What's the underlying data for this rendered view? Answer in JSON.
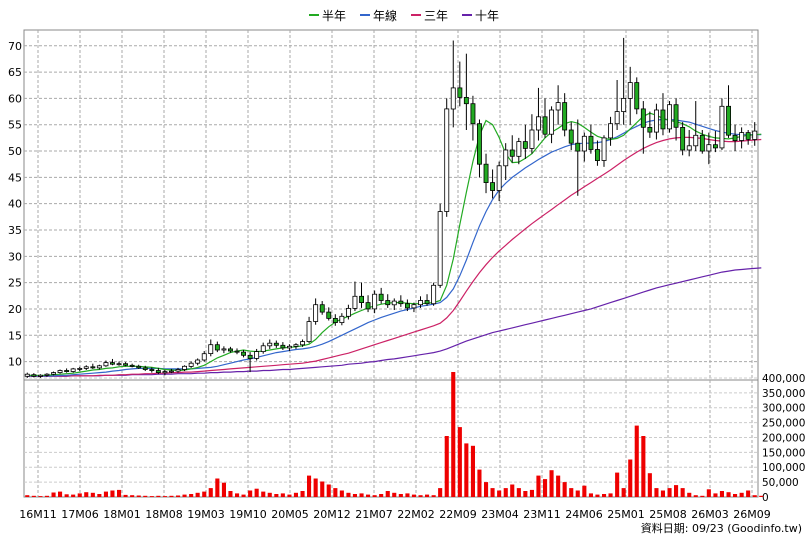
{
  "chart_data": {
    "type": "candlestick",
    "legend": [
      {
        "name": "半年",
        "color": "#22aa22"
      },
      {
        "name": "年線",
        "color": "#3366cc"
      },
      {
        "name": "三年",
        "color": "#cc2266"
      },
      {
        "name": "十年",
        "color": "#6622aa"
      }
    ],
    "x_tick_labels": [
      "16M11",
      "17M06",
      "18M01",
      "18M08",
      "19M03",
      "19M10",
      "20M05",
      "20M12",
      "21M07",
      "22M02",
      "22M09",
      "23M04",
      "23M11",
      "24M06",
      "25M01",
      "25M08",
      "26M03",
      "26M09"
    ],
    "price_axis": {
      "ticks": [
        10,
        15,
        20,
        25,
        30,
        35,
        40,
        45,
        50,
        55,
        60,
        65,
        70
      ],
      "range": [
        6.5,
        73
      ]
    },
    "volume_axis": {
      "ticks": [
        "0",
        "50,000",
        "100,000",
        "150,000",
        "200,000",
        "250,000",
        "300,000",
        "350,000",
        "400,000"
      ],
      "range": [
        0,
        420000
      ]
    },
    "candles": [
      {
        "o": 7.2,
        "h": 7.9,
        "l": 6.9,
        "c": 7.6
      },
      {
        "o": 7.5,
        "h": 7.8,
        "l": 7.0,
        "c": 7.2
      },
      {
        "o": 7.2,
        "h": 7.6,
        "l": 6.9,
        "c": 7.4
      },
      {
        "o": 7.4,
        "h": 7.8,
        "l": 7.1,
        "c": 7.6
      },
      {
        "o": 7.6,
        "h": 8.1,
        "l": 7.4,
        "c": 7.9
      },
      {
        "o": 7.9,
        "h": 8.5,
        "l": 7.7,
        "c": 8.3
      },
      {
        "o": 8.3,
        "h": 8.7,
        "l": 7.9,
        "c": 8.1
      },
      {
        "o": 8.1,
        "h": 8.8,
        "l": 7.9,
        "c": 8.6
      },
      {
        "o": 8.6,
        "h": 9.0,
        "l": 8.2,
        "c": 8.7
      },
      {
        "o": 8.7,
        "h": 9.3,
        "l": 8.4,
        "c": 9.0
      },
      {
        "o": 9.0,
        "h": 9.6,
        "l": 8.6,
        "c": 8.8
      },
      {
        "o": 8.8,
        "h": 9.4,
        "l": 8.5,
        "c": 9.2
      },
      {
        "o": 9.2,
        "h": 10.2,
        "l": 9.0,
        "c": 9.8
      },
      {
        "o": 9.8,
        "h": 10.5,
        "l": 9.3,
        "c": 9.5
      },
      {
        "o": 9.5,
        "h": 10.0,
        "l": 9.2,
        "c": 9.6
      },
      {
        "o": 9.6,
        "h": 9.9,
        "l": 9.1,
        "c": 9.3
      },
      {
        "o": 9.3,
        "h": 9.6,
        "l": 8.9,
        "c": 9.1
      },
      {
        "o": 9.1,
        "h": 9.4,
        "l": 8.6,
        "c": 8.8
      },
      {
        "o": 8.8,
        "h": 9.2,
        "l": 8.2,
        "c": 8.5
      },
      {
        "o": 8.5,
        "h": 8.9,
        "l": 7.9,
        "c": 8.3
      },
      {
        "o": 8.3,
        "h": 8.8,
        "l": 7.6,
        "c": 7.9
      },
      {
        "o": 7.9,
        "h": 8.4,
        "l": 7.4,
        "c": 8.1
      },
      {
        "o": 8.1,
        "h": 8.6,
        "l": 7.8,
        "c": 8.2
      },
      {
        "o": 8.2,
        "h": 8.8,
        "l": 7.9,
        "c": 8.5
      },
      {
        "o": 8.5,
        "h": 9.3,
        "l": 8.2,
        "c": 9.1
      },
      {
        "o": 9.1,
        "h": 10.0,
        "l": 8.8,
        "c": 9.7
      },
      {
        "o": 9.7,
        "h": 10.6,
        "l": 9.3,
        "c": 10.3
      },
      {
        "o": 10.3,
        "h": 12.0,
        "l": 10.0,
        "c": 11.5
      },
      {
        "o": 11.5,
        "h": 14.2,
        "l": 11.0,
        "c": 13.2
      },
      {
        "o": 13.2,
        "h": 13.8,
        "l": 11.8,
        "c": 12.2
      },
      {
        "o": 12.2,
        "h": 12.9,
        "l": 11.6,
        "c": 12.4
      },
      {
        "o": 12.4,
        "h": 12.8,
        "l": 11.7,
        "c": 12.0
      },
      {
        "o": 12.0,
        "h": 12.5,
        "l": 11.4,
        "c": 11.8
      },
      {
        "o": 11.8,
        "h": 12.2,
        "l": 10.8,
        "c": 11.2
      },
      {
        "o": 11.2,
        "h": 11.8,
        "l": 8.0,
        "c": 10.6
      },
      {
        "o": 10.6,
        "h": 12.4,
        "l": 10.2,
        "c": 11.9
      },
      {
        "o": 11.9,
        "h": 13.6,
        "l": 11.5,
        "c": 13.0
      },
      {
        "o": 13.0,
        "h": 14.2,
        "l": 12.4,
        "c": 13.5
      },
      {
        "o": 13.5,
        "h": 14.0,
        "l": 12.6,
        "c": 13.1
      },
      {
        "o": 13.1,
        "h": 13.7,
        "l": 12.2,
        "c": 12.6
      },
      {
        "o": 12.6,
        "h": 13.3,
        "l": 12.0,
        "c": 12.9
      },
      {
        "o": 12.9,
        "h": 13.5,
        "l": 12.4,
        "c": 13.2
      },
      {
        "o": 13.2,
        "h": 14.2,
        "l": 12.8,
        "c": 13.8
      },
      {
        "o": 13.8,
        "h": 18.5,
        "l": 13.5,
        "c": 17.6
      },
      {
        "o": 17.6,
        "h": 22.0,
        "l": 17.0,
        "c": 20.8
      },
      {
        "o": 20.8,
        "h": 21.5,
        "l": 18.9,
        "c": 19.4
      },
      {
        "o": 19.4,
        "h": 20.3,
        "l": 17.8,
        "c": 18.2
      },
      {
        "o": 18.2,
        "h": 19.0,
        "l": 16.8,
        "c": 17.4
      },
      {
        "o": 17.4,
        "h": 19.2,
        "l": 16.9,
        "c": 18.6
      },
      {
        "o": 18.6,
        "h": 20.8,
        "l": 18.0,
        "c": 20.1
      },
      {
        "o": 20.1,
        "h": 25.2,
        "l": 19.6,
        "c": 22.4
      },
      {
        "o": 22.4,
        "h": 25.0,
        "l": 20.2,
        "c": 21.2
      },
      {
        "o": 21.2,
        "h": 22.6,
        "l": 19.4,
        "c": 20.0
      },
      {
        "o": 20.0,
        "h": 23.5,
        "l": 19.2,
        "c": 22.8
      },
      {
        "o": 22.8,
        "h": 24.0,
        "l": 21.0,
        "c": 21.6
      },
      {
        "o": 21.6,
        "h": 22.8,
        "l": 20.2,
        "c": 20.8
      },
      {
        "o": 20.8,
        "h": 22.0,
        "l": 19.8,
        "c": 21.5
      },
      {
        "o": 21.5,
        "h": 22.6,
        "l": 20.4,
        "c": 21.0
      },
      {
        "o": 21.0,
        "h": 21.8,
        "l": 19.6,
        "c": 20.2
      },
      {
        "o": 20.2,
        "h": 21.2,
        "l": 19.4,
        "c": 20.8
      },
      {
        "o": 20.8,
        "h": 22.4,
        "l": 20.2,
        "c": 21.6
      },
      {
        "o": 21.6,
        "h": 22.8,
        "l": 20.6,
        "c": 21.0
      },
      {
        "o": 21.0,
        "h": 25.0,
        "l": 20.6,
        "c": 24.5
      },
      {
        "o": 24.5,
        "h": 40.0,
        "l": 24.0,
        "c": 38.5
      },
      {
        "o": 38.5,
        "h": 60.0,
        "l": 37.5,
        "c": 58.0
      },
      {
        "o": 58.0,
        "h": 71.0,
        "l": 54.5,
        "c": 62.0
      },
      {
        "o": 62.0,
        "h": 67.0,
        "l": 58.5,
        "c": 60.2
      },
      {
        "o": 60.2,
        "h": 68.5,
        "l": 54.0,
        "c": 59.0
      },
      {
        "o": 59.0,
        "h": 60.5,
        "l": 52.0,
        "c": 55.2
      },
      {
        "o": 55.2,
        "h": 56.0,
        "l": 45.0,
        "c": 47.5
      },
      {
        "o": 47.5,
        "h": 49.5,
        "l": 42.0,
        "c": 44.0
      },
      {
        "o": 44.0,
        "h": 46.5,
        "l": 41.0,
        "c": 42.5
      },
      {
        "o": 42.5,
        "h": 48.0,
        "l": 40.5,
        "c": 47.2
      },
      {
        "o": 47.2,
        "h": 51.5,
        "l": 44.5,
        "c": 50.2
      },
      {
        "o": 50.2,
        "h": 53.0,
        "l": 47.8,
        "c": 49.0
      },
      {
        "o": 49.0,
        "h": 52.5,
        "l": 47.5,
        "c": 51.8
      },
      {
        "o": 51.8,
        "h": 55.0,
        "l": 48.5,
        "c": 50.5
      },
      {
        "o": 50.5,
        "h": 57.0,
        "l": 49.5,
        "c": 54.0
      },
      {
        "o": 54.0,
        "h": 62.0,
        "l": 52.0,
        "c": 56.5
      },
      {
        "o": 56.5,
        "h": 60.0,
        "l": 52.5,
        "c": 53.2
      },
      {
        "o": 53.2,
        "h": 58.5,
        "l": 51.5,
        "c": 57.8
      },
      {
        "o": 57.8,
        "h": 62.5,
        "l": 55.0,
        "c": 59.2
      },
      {
        "o": 59.2,
        "h": 61.0,
        "l": 52.8,
        "c": 54.0
      },
      {
        "o": 54.0,
        "h": 55.5,
        "l": 50.2,
        "c": 51.5
      },
      {
        "o": 51.5,
        "h": 56.0,
        "l": 41.5,
        "c": 50.0
      },
      {
        "o": 50.0,
        "h": 53.5,
        "l": 48.0,
        "c": 52.8
      },
      {
        "o": 52.8,
        "h": 55.0,
        "l": 49.5,
        "c": 50.3
      },
      {
        "o": 50.3,
        "h": 52.0,
        "l": 47.2,
        "c": 48.2
      },
      {
        "o": 48.2,
        "h": 53.0,
        "l": 47.0,
        "c": 52.5
      },
      {
        "o": 52.5,
        "h": 56.5,
        "l": 51.0,
        "c": 55.2
      },
      {
        "o": 55.2,
        "h": 63.5,
        "l": 54.0,
        "c": 57.5
      },
      {
        "o": 57.5,
        "h": 71.5,
        "l": 55.0,
        "c": 60.0
      },
      {
        "o": 60.0,
        "h": 66.0,
        "l": 55.0,
        "c": 63.0
      },
      {
        "o": 63.0,
        "h": 64.0,
        "l": 57.0,
        "c": 58.0
      },
      {
        "o": 58.0,
        "h": 59.5,
        "l": 49.5,
        "c": 54.5
      },
      {
        "o": 54.5,
        "h": 57.5,
        "l": 52.5,
        "c": 53.6
      },
      {
        "o": 53.6,
        "h": 59.0,
        "l": 52.2,
        "c": 57.8
      },
      {
        "o": 57.8,
        "h": 61.0,
        "l": 53.0,
        "c": 54.2
      },
      {
        "o": 54.2,
        "h": 59.5,
        "l": 53.5,
        "c": 58.8
      },
      {
        "o": 58.8,
        "h": 60.0,
        "l": 52.0,
        "c": 54.5
      },
      {
        "o": 54.5,
        "h": 55.5,
        "l": 49.2,
        "c": 50.2
      },
      {
        "o": 50.2,
        "h": 54.0,
        "l": 49.0,
        "c": 51.0
      },
      {
        "o": 51.0,
        "h": 59.5,
        "l": 50.0,
        "c": 53.0
      },
      {
        "o": 53.0,
        "h": 54.0,
        "l": 49.5,
        "c": 50.0
      },
      {
        "o": 50.0,
        "h": 53.5,
        "l": 47.5,
        "c": 51.2
      },
      {
        "o": 51.2,
        "h": 53.8,
        "l": 49.8,
        "c": 50.6
      },
      {
        "o": 50.6,
        "h": 60.0,
        "l": 50.2,
        "c": 58.5
      },
      {
        "o": 58.5,
        "h": 62.5,
        "l": 52.5,
        "c": 53.0
      },
      {
        "o": 53.0,
        "h": 55.0,
        "l": 50.0,
        "c": 52.0
      },
      {
        "o": 52.0,
        "h": 54.5,
        "l": 50.5,
        "c": 53.5
      },
      {
        "o": 53.5,
        "h": 54.0,
        "l": 51.2,
        "c": 52.2
      },
      {
        "o": 52.2,
        "h": 55.5,
        "l": 51.0,
        "c": 53.8
      }
    ],
    "ma_half_year": [
      7.4,
      7.4,
      7.4,
      7.4,
      7.5,
      7.6,
      7.7,
      7.8,
      8.0,
      8.2,
      8.4,
      8.5,
      8.7,
      8.8,
      9.0,
      9.1,
      9.1,
      9.1,
      9.0,
      8.9,
      8.7,
      8.5,
      8.4,
      8.3,
      8.4,
      8.6,
      8.9,
      9.3,
      10.0,
      10.7,
      11.2,
      11.7,
      12.0,
      12.2,
      12.0,
      11.9,
      12.0,
      12.2,
      12.4,
      12.6,
      12.7,
      12.8,
      13.0,
      13.3,
      14.2,
      15.5,
      16.6,
      17.5,
      18.1,
      18.6,
      19.2,
      19.7,
      20.2,
      20.6,
      20.9,
      21.1,
      21.2,
      21.2,
      21.1,
      21.0,
      21.0,
      21.1,
      21.2,
      21.6,
      24.5,
      29.5,
      36.0,
      42.2,
      48.0,
      53.0,
      55.8,
      55.0,
      52.6,
      49.5,
      47.8,
      47.9,
      48.6,
      49.5,
      51.0,
      52.5,
      53.6,
      54.3,
      55.2,
      55.6,
      55.3,
      54.5,
      53.6,
      52.8,
      52.4,
      52.2,
      52.4,
      53.0,
      54.2,
      55.4,
      56.6,
      57.2,
      56.8,
      56.2,
      55.8,
      55.6,
      55.2,
      54.6,
      53.8,
      53.2,
      52.8,
      52.5,
      52.4,
      52.3,
      52.5,
      52.8,
      53.0,
      53.1,
      53.2
    ],
    "ma_year": [
      7.3,
      7.3,
      7.3,
      7.3,
      7.3,
      7.4,
      7.4,
      7.5,
      7.6,
      7.7,
      7.8,
      7.9,
      8.0,
      8.2,
      8.3,
      8.5,
      8.6,
      8.7,
      8.7,
      8.7,
      8.7,
      8.6,
      8.6,
      8.6,
      8.6,
      8.6,
      8.7,
      8.8,
      8.9,
      9.1,
      9.4,
      9.7,
      10.0,
      10.3,
      10.5,
      10.8,
      11.1,
      11.4,
      11.7,
      11.9,
      12.1,
      12.3,
      12.4,
      12.6,
      12.9,
      13.3,
      13.8,
      14.4,
      15.0,
      15.6,
      16.2,
      16.8,
      17.4,
      17.9,
      18.4,
      18.8,
      19.2,
      19.6,
      19.9,
      20.2,
      20.5,
      20.7,
      20.9,
      21.2,
      22.2,
      23.8,
      26.3,
      29.3,
      32.6,
      35.8,
      38.5,
      40.8,
      42.6,
      43.9,
      45.0,
      45.9,
      46.8,
      47.6,
      48.4,
      49.1,
      49.8,
      50.3,
      50.8,
      51.2,
      51.4,
      51.5,
      51.5,
      51.6,
      51.8,
      52.2,
      52.7,
      53.4,
      54.1,
      54.7,
      55.3,
      55.7,
      55.9,
      56.0,
      56.0,
      55.9,
      55.7,
      55.5,
      55.1,
      54.7,
      54.3,
      53.9,
      53.6,
      53.4,
      53.2,
      53.1,
      53.1,
      53.1,
      53.1
    ],
    "ma_three_year": [
      7.3,
      7.3,
      7.3,
      7.3,
      7.3,
      7.3,
      7.3,
      7.3,
      7.3,
      7.3,
      7.3,
      7.4,
      7.4,
      7.4,
      7.5,
      7.5,
      7.6,
      7.6,
      7.7,
      7.7,
      7.8,
      7.8,
      7.9,
      7.9,
      8.0,
      8.0,
      8.1,
      8.2,
      8.3,
      8.4,
      8.5,
      8.6,
      8.7,
      8.8,
      8.9,
      9.0,
      9.1,
      9.2,
      9.3,
      9.4,
      9.5,
      9.6,
      9.7,
      9.9,
      10.1,
      10.4,
      10.7,
      11.0,
      11.3,
      11.6,
      12.0,
      12.4,
      12.8,
      13.2,
      13.6,
      14.0,
      14.4,
      14.8,
      15.2,
      15.6,
      16.0,
      16.4,
      16.8,
      17.3,
      18.3,
      19.7,
      21.5,
      23.4,
      25.2,
      26.9,
      28.4,
      29.8,
      31.0,
      32.1,
      33.2,
      34.2,
      35.2,
      36.2,
      37.1,
      38.0,
      38.9,
      39.8,
      40.7,
      41.6,
      42.4,
      43.2,
      44.0,
      44.8,
      45.6,
      46.4,
      47.3,
      48.2,
      49.0,
      49.8,
      50.5,
      51.1,
      51.6,
      52.0,
      52.3,
      52.5,
      52.6,
      52.6,
      52.5,
      52.4,
      52.2,
      52.0,
      51.9,
      51.8,
      51.8,
      51.9,
      52.0,
      52.1,
      52.2
    ],
    "ma_ten_year": [
      7.2,
      7.2,
      7.2,
      7.2,
      7.2,
      7.2,
      7.2,
      7.3,
      7.3,
      7.3,
      7.3,
      7.3,
      7.4,
      7.4,
      7.4,
      7.4,
      7.5,
      7.5,
      7.5,
      7.5,
      7.6,
      7.6,
      7.6,
      7.7,
      7.7,
      7.7,
      7.8,
      7.8,
      7.9,
      7.9,
      8.0,
      8.0,
      8.1,
      8.1,
      8.2,
      8.2,
      8.3,
      8.3,
      8.4,
      8.5,
      8.5,
      8.6,
      8.7,
      8.8,
      8.9,
      9.0,
      9.1,
      9.2,
      9.3,
      9.5,
      9.6,
      9.7,
      9.9,
      10.0,
      10.2,
      10.4,
      10.5,
      10.7,
      10.9,
      11.1,
      11.3,
      11.5,
      11.7,
      12.0,
      12.4,
      12.9,
      13.4,
      13.9,
      14.3,
      14.7,
      15.1,
      15.5,
      15.8,
      16.1,
      16.4,
      16.7,
      17.0,
      17.3,
      17.6,
      17.9,
      18.2,
      18.5,
      18.8,
      19.1,
      19.4,
      19.7,
      20.0,
      20.4,
      20.8,
      21.2,
      21.6,
      22.0,
      22.4,
      22.8,
      23.2,
      23.6,
      24.0,
      24.3,
      24.6,
      24.9,
      25.2,
      25.5,
      25.8,
      26.1,
      26.4,
      26.7,
      27.0,
      27.2,
      27.4,
      27.5,
      27.6,
      27.7,
      27.8
    ],
    "volumes": [
      6000,
      4000,
      3000,
      4000,
      15000,
      18000,
      9000,
      8000,
      12000,
      16000,
      14000,
      10000,
      18000,
      22000,
      24000,
      7000,
      6000,
      5000,
      4000,
      3000,
      4000,
      3000,
      4000,
      5000,
      8000,
      10000,
      14000,
      18000,
      30000,
      62000,
      48000,
      20000,
      12000,
      8000,
      22000,
      28000,
      18000,
      14000,
      10000,
      12000,
      8000,
      14000,
      20000,
      72000,
      62000,
      52000,
      42000,
      30000,
      22000,
      14000,
      10000,
      12000,
      8000,
      6000,
      10000,
      20000,
      14000,
      10000,
      12000,
      8000,
      6000,
      8000,
      6000,
      30000,
      205000,
      420000,
      235000,
      180000,
      172000,
      92000,
      50000,
      30000,
      22000,
      30000,
      42000,
      30000,
      20000,
      24000,
      72000,
      60000,
      90000,
      72000,
      50000,
      30000,
      22000,
      38000,
      12000,
      8000,
      10000,
      12000,
      82000,
      30000,
      126000,
      240000,
      205000,
      80000,
      30000,
      22000,
      30000,
      40000,
      30000,
      14000,
      6000,
      4000,
      26000,
      12000,
      20000,
      16000,
      10000,
      14000,
      22000,
      6000,
      4000
    ]
  },
  "footer": {
    "text": "資料日期: 09/23  (Goodinfo.tw)"
  }
}
